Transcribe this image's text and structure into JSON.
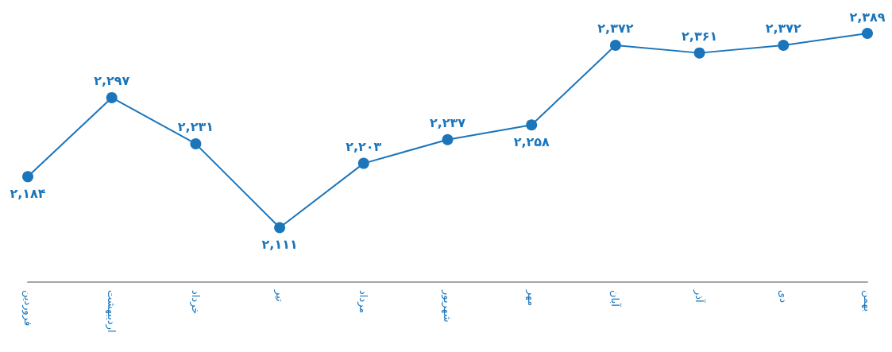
{
  "chart_data": {
    "type": "line",
    "categories": [
      "فروردین",
      "اردیبهشت",
      "خرداد",
      "تیر",
      "مرداد",
      "شهریور",
      "مهر",
      "آبان",
      "آذر",
      "دی",
      "بهمن"
    ],
    "series": [
      {
        "color": "#1b75bb",
        "values": [
          2184,
          2297,
          2231,
          2111,
          2203,
          2237,
          2258,
          2372,
          2361,
          2372,
          2389
        ],
        "value_labels": [
          "۲,۱۸۴",
          "۲,۲۹۷",
          "۲,۲۳۱",
          "۲,۱۱۱",
          "۲,۲۰۳",
          "۲,۲۳۷",
          "۲,۲۵۸",
          "۲,۳۷۲",
          "۲,۳۶۱",
          "۲,۳۷۲",
          "۲,۳۸۹"
        ]
      }
    ],
    "marker": "circle",
    "line_style": "solid",
    "grid": false,
    "tick_labels": "x"
  }
}
